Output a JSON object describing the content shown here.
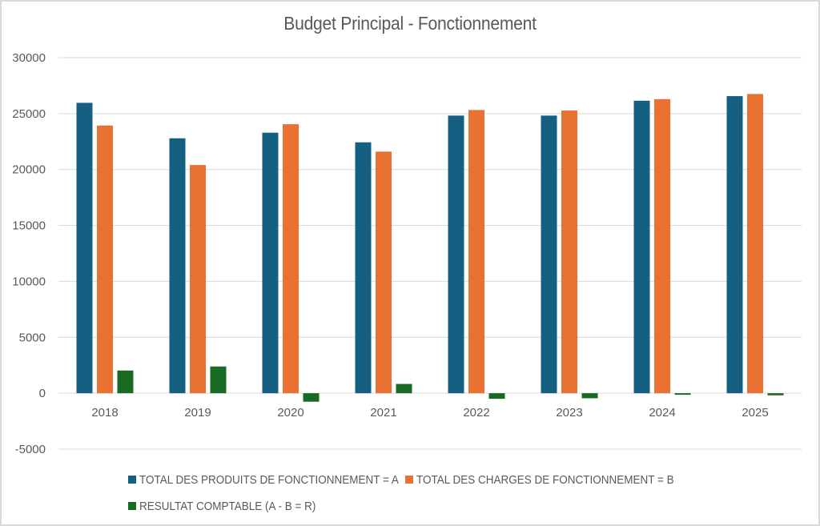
{
  "chart_data": {
    "type": "bar",
    "title": "Budget Principal - Fonctionnement",
    "xlabel": "",
    "ylabel": "",
    "categories": [
      "2018",
      "2019",
      "2020",
      "2021",
      "2022",
      "2023",
      "2024",
      "2025"
    ],
    "series": [
      {
        "name": "TOTAL DES PRODUITS DE FONCTIONNEMENT = A",
        "color": "#156082",
        "values": [
          25960,
          22790,
          23290,
          22430,
          24820,
          24820,
          26150,
          26560
        ]
      },
      {
        "name": "TOTAL DES CHARGES DE FONCTIONNEMENT = B",
        "color": "#E97132",
        "values": [
          23930,
          20400,
          24050,
          21600,
          25320,
          25270,
          26290,
          26750
        ]
      },
      {
        "name": "RESULTAT COMPTABLE (A - B = R)",
        "color": "#196B24",
        "values": [
          2030,
          2390,
          -760,
          830,
          -500,
          -450,
          -140,
          -190
        ]
      }
    ],
    "ylim": [
      -5000,
      30000
    ],
    "yticks": [
      -5000,
      0,
      5000,
      10000,
      15000,
      20000,
      25000,
      30000
    ],
    "ytick_labels": [
      "-5000",
      "0",
      "5000",
      "10000",
      "15000",
      "20000",
      "25000",
      "30000"
    ],
    "grid": true,
    "legend_position": "bottom"
  }
}
